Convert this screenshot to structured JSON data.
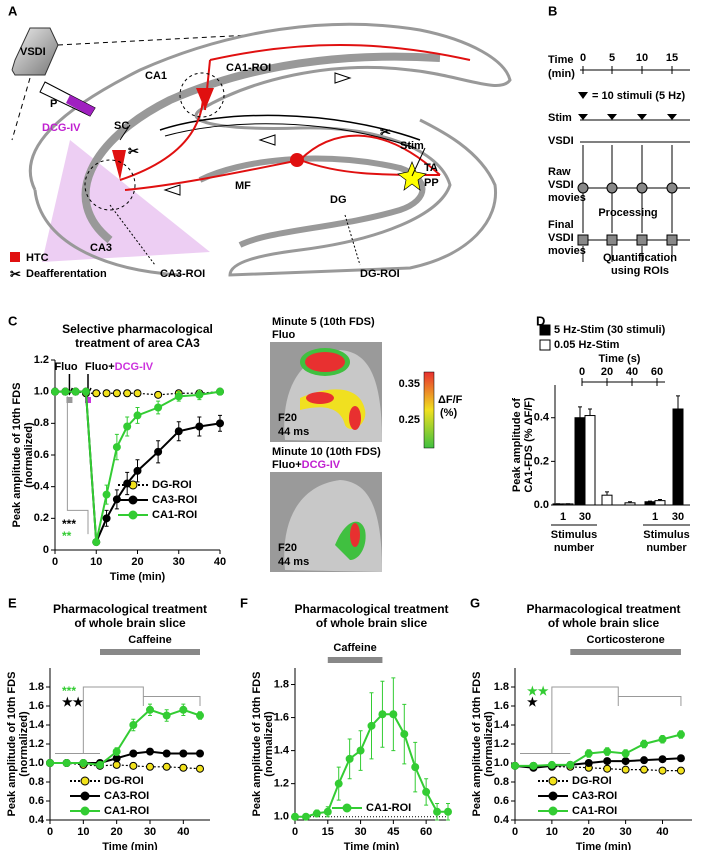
{
  "diagram": {
    "panel_a": {
      "letter": "A",
      "vsdi": "VSDI",
      "ca1": "CA1",
      "ca1_roi": "CA1-ROI",
      "p": "P",
      "dcg": "DCG-IV",
      "sc": "SC",
      "ca3": "CA3",
      "mf": "MF",
      "dg": "DG",
      "stim": "Stim",
      "ta": "TA",
      "pp": "PP",
      "htc": "HTC",
      "deaff": "Deafferentation",
      "ca3_roi": "CA3-ROI",
      "dg_roi": "DG-ROI"
    },
    "panel_b": {
      "letter": "B",
      "time": [
        "Time",
        "(min)"
      ],
      "time_ticks": [
        0,
        5,
        10,
        15
      ],
      "stim_note": "= 10 stimuli (5 Hz)",
      "stim": "Stim",
      "vsdi": "VSDI",
      "raw": [
        "Raw",
        "VSDI",
        "movies"
      ],
      "processing": "Processing",
      "final": [
        "Final",
        "VSDI",
        "movies"
      ],
      "quant": [
        "Quantification",
        "using ROIs"
      ]
    },
    "panel_c_images": {
      "letter": "C",
      "img1_title": "Minute 5 (10th FDS)",
      "img1_sub": "Fluo",
      "img2_title": "Minute 10 (10th FDS)",
      "img2_sub": [
        "Fluo+",
        "DCG-IV"
      ],
      "frame": "F20",
      "ms": "44 ms",
      "cbar_label": [
        "ΔF/F",
        "(%)"
      ],
      "cbar_ticks": [
        0.35,
        0.25
      ]
    },
    "letters": {
      "d": "D",
      "e": "E",
      "f": "F",
      "g": "G"
    }
  },
  "chart_data": [
    {
      "type": "line",
      "title": [
        "Selective pharmacological",
        "treatment of area CA3"
      ],
      "xlabel": "Time (min)",
      "ylabel": [
        "Peak amplitude of 10th FDS",
        "(normalized)"
      ],
      "xlim": [
        0,
        40
      ],
      "xticks": [
        0,
        10,
        20,
        30,
        40
      ],
      "ylim": [
        0,
        1.2
      ],
      "yticks": [
        0,
        0.2,
        0.4,
        0.6,
        0.8,
        {
          "value": 1,
          "label": "1.0"
        },
        1.2
      ],
      "x": [
        0,
        2.5,
        5,
        7.5,
        10,
        12.5,
        15,
        17.5,
        20,
        25,
        30,
        35,
        40
      ],
      "series": [
        {
          "name": "DG-ROI",
          "color": "#f2e21c",
          "line_style": "dotted",
          "values": [
            1,
            1,
            1,
            0.99,
            0.99,
            0.99,
            0.99,
            0.99,
            0.99,
            0.98,
            0.99,
            0.99,
            1
          ],
          "errors": [
            0.01,
            0.01,
            0.01,
            0.01,
            0.01,
            0.01,
            0.01,
            0.01,
            0.01,
            0.01,
            0.01,
            0.01,
            0.01
          ]
        },
        {
          "name": "CA3-ROI",
          "color": "#000000",
          "line_style": "solid",
          "values": [
            1,
            1,
            1,
            1,
            0.05,
            0.2,
            0.32,
            0.42,
            0.5,
            0.62,
            0.75,
            0.78,
            0.8
          ],
          "errors": [
            0,
            0.01,
            0.01,
            0.01,
            0.01,
            0.05,
            0.06,
            0.07,
            0.07,
            0.07,
            0.06,
            0.06,
            0.05
          ]
        },
        {
          "name": "CA1-ROI",
          "color": "#33cc33",
          "line_style": "solid",
          "values": [
            1,
            1,
            1,
            1,
            0.05,
            0.35,
            0.65,
            0.78,
            0.85,
            0.9,
            0.97,
            0.98,
            1
          ],
          "errors": [
            0,
            0.01,
            0.01,
            0.01,
            0.01,
            0.06,
            0.08,
            0.06,
            0.05,
            0.04,
            0.03,
            0.03,
            0.02
          ]
        }
      ],
      "applications": [
        {
          "label": [
            "Fluo"
          ],
          "x": 3.5,
          "color": "#999999"
        },
        {
          "label": [
            "Fluo+",
            "DCG-IV"
          ],
          "x": 8,
          "color": "#cc33dd"
        }
      ],
      "stars": [
        {
          "text": "***",
          "color": "#000000"
        },
        {
          "text": "**",
          "color": "#33cc33"
        }
      ]
    },
    {
      "type": "bar",
      "xlabel": [
        "Stimulus",
        "number"
      ],
      "ylabel": [
        "Peak amplitude of",
        "CA1-FDS (% ΔF/F)"
      ],
      "categories": [
        "1",
        "30",
        null,
        null,
        "1",
        "30"
      ],
      "ylim": [
        0,
        0.55
      ],
      "yticks": [
        {
          "value": 0,
          "label": "0.0"
        },
        0.2,
        0.4
      ],
      "x2label": "Time (s)",
      "x2lim": [
        0,
        60
      ],
      "x2ticks": [
        0,
        20,
        40,
        60
      ],
      "series": [
        {
          "name": "5 Hz-Stim (30 stimuli)",
          "color": "#000000",
          "values": [
            0.005,
            0.4,
            null,
            null,
            0.015,
            0.44
          ],
          "errors": [
            0.001,
            0.05,
            null,
            null,
            0.003,
            0.06
          ]
        },
        {
          "name": "0.05 Hz-Stim",
          "color": "#ffffff",
          "values": [
            0.005,
            0.41,
            0.045,
            0.01,
            0.02,
            null
          ],
          "errors": [
            0.001,
            0.03,
            0.015,
            0.005,
            0.005,
            null
          ]
        }
      ]
    },
    {
      "type": "line",
      "title": [
        "Pharmacological treatment",
        "of whole brain slice"
      ],
      "xlabel": "Time (min)",
      "ylabel": [
        "Peak amplitude of 10th FDS",
        "(normalized)"
      ],
      "xlim": [
        0,
        48
      ],
      "xticks": [
        0,
        10,
        20,
        30,
        40
      ],
      "ylim": [
        0.4,
        2
      ],
      "yticks": [
        0.4,
        0.6,
        0.8,
        {
          "value": 1,
          "label": "1.0"
        },
        1.2,
        1.4,
        1.6,
        1.8
      ],
      "x": [
        0,
        5,
        10,
        15,
        20,
        25,
        30,
        35,
        40,
        45
      ],
      "series": [
        {
          "name": "DG-ROI",
          "color": "#f2e21c",
          "line_style": "dotted",
          "values": [
            1,
            1,
            0.98,
            0.97,
            0.98,
            0.97,
            0.96,
            0.96,
            0.95,
            0.94
          ],
          "errors": [
            0.01,
            0.01,
            0.01,
            0.01,
            0.01,
            0.01,
            0.01,
            0.01,
            0.01,
            0.01
          ]
        },
        {
          "name": "CA3-ROI",
          "color": "#000000",
          "line_style": "solid",
          "values": [
            1,
            1,
            1,
            1,
            1.05,
            1.1,
            1.12,
            1.1,
            1.1,
            1.1
          ],
          "errors": [
            0.01,
            0.01,
            0.01,
            0.01,
            0.02,
            0.02,
            0.02,
            0.02,
            0.02,
            0.02
          ]
        },
        {
          "name": "CA1-ROI",
          "color": "#33cc33",
          "line_style": "solid",
          "values": [
            1,
            1,
            1,
            0.98,
            1.12,
            1.4,
            1.56,
            1.5,
            1.56,
            1.5
          ],
          "errors": [
            0.01,
            0.01,
            0.01,
            0.02,
            0.04,
            0.06,
            0.06,
            0.06,
            0.06,
            0.04
          ]
        }
      ],
      "treatment": {
        "label": "Caffeine",
        "start": 15,
        "end": 45
      },
      "stars": [
        {
          "text": "***",
          "color": "#33cc33"
        },
        {
          "text": "★★",
          "color": "#000000"
        }
      ]
    },
    {
      "type": "line",
      "title": [
        "Pharmacological treatment",
        "of whole brain slice"
      ],
      "xlabel": "Time (min)",
      "ylabel": [
        "Peak amplitude of 10th FDS",
        "(normalized)"
      ],
      "xlim": [
        0,
        70
      ],
      "xticks": [
        0,
        15,
        30,
        45,
        60
      ],
      "ylim": [
        0.98,
        1.9
      ],
      "yticks": [
        {
          "value": 1,
          "label": "1.0"
        },
        1.2,
        1.4,
        1.6,
        1.8
      ],
      "hline": 1,
      "x": [
        0,
        5,
        10,
        15,
        20,
        25,
        30,
        35,
        40,
        45,
        50,
        55,
        60,
        65,
        70
      ],
      "series": [
        {
          "name": "CA1-ROI",
          "color": "#33cc33",
          "line_style": "solid",
          "values": [
            1,
            1,
            1.02,
            1.03,
            1.2,
            1.35,
            1.4,
            1.55,
            1.62,
            1.62,
            1.5,
            1.3,
            1.15,
            1.03,
            1.03
          ],
          "errors": [
            0.01,
            0.01,
            0.02,
            0.03,
            0.1,
            0.12,
            0.12,
            0.2,
            0.2,
            0.22,
            0.18,
            0.15,
            0.08,
            0.05,
            0.05
          ]
        }
      ],
      "treatment": {
        "label": "Caffeine",
        "start": 15,
        "end": 40
      }
    },
    {
      "type": "line",
      "title": [
        "Pharmacological treatment",
        "of whole brain slice"
      ],
      "xlabel": "Time (min)",
      "ylabel": [
        "Peak amplitude of 10th FDS",
        "(normalized)"
      ],
      "xlim": [
        0,
        48
      ],
      "xticks": [
        0,
        10,
        20,
        30,
        40
      ],
      "ylim": [
        0.4,
        2
      ],
      "yticks": [
        0.4,
        0.6,
        0.8,
        {
          "value": 1,
          "label": "1.0"
        },
        1.2,
        1.4,
        1.6,
        1.8
      ],
      "x": [
        0,
        5,
        10,
        15,
        20,
        25,
        30,
        35,
        40,
        45
      ],
      "series": [
        {
          "name": "DG-ROI",
          "color": "#f2e21c",
          "line_style": "dotted",
          "values": [
            0.97,
            0.97,
            0.96,
            0.96,
            0.95,
            0.94,
            0.93,
            0.93,
            0.92,
            0.92
          ],
          "errors": [
            0.01,
            0.01,
            0.01,
            0.01,
            0.01,
            0.01,
            0.01,
            0.01,
            0.01,
            0.01
          ]
        },
        {
          "name": "CA3-ROI",
          "color": "#000000",
          "line_style": "solid",
          "values": [
            0.97,
            0.95,
            0.97,
            0.98,
            1,
            1.02,
            1.02,
            1.03,
            1.04,
            1.05
          ],
          "errors": [
            0.01,
            0.01,
            0.01,
            0.01,
            0.01,
            0.01,
            0.01,
            0.01,
            0.01,
            0.01
          ]
        },
        {
          "name": "CA1-ROI",
          "color": "#33cc33",
          "line_style": "solid",
          "values": [
            0.97,
            0.97,
            0.98,
            0.98,
            1.1,
            1.12,
            1.1,
            1.2,
            1.25,
            1.3
          ],
          "errors": [
            0.01,
            0.01,
            0.01,
            0.01,
            0.04,
            0.04,
            0.04,
            0.04,
            0.04,
            0.04
          ]
        }
      ],
      "treatment": {
        "label": "Corticosterone",
        "start": 15,
        "end": 45
      },
      "stars": [
        {
          "text": "★★",
          "color": "#33cc33"
        },
        {
          "text": "★",
          "color": "#000000"
        }
      ]
    }
  ]
}
